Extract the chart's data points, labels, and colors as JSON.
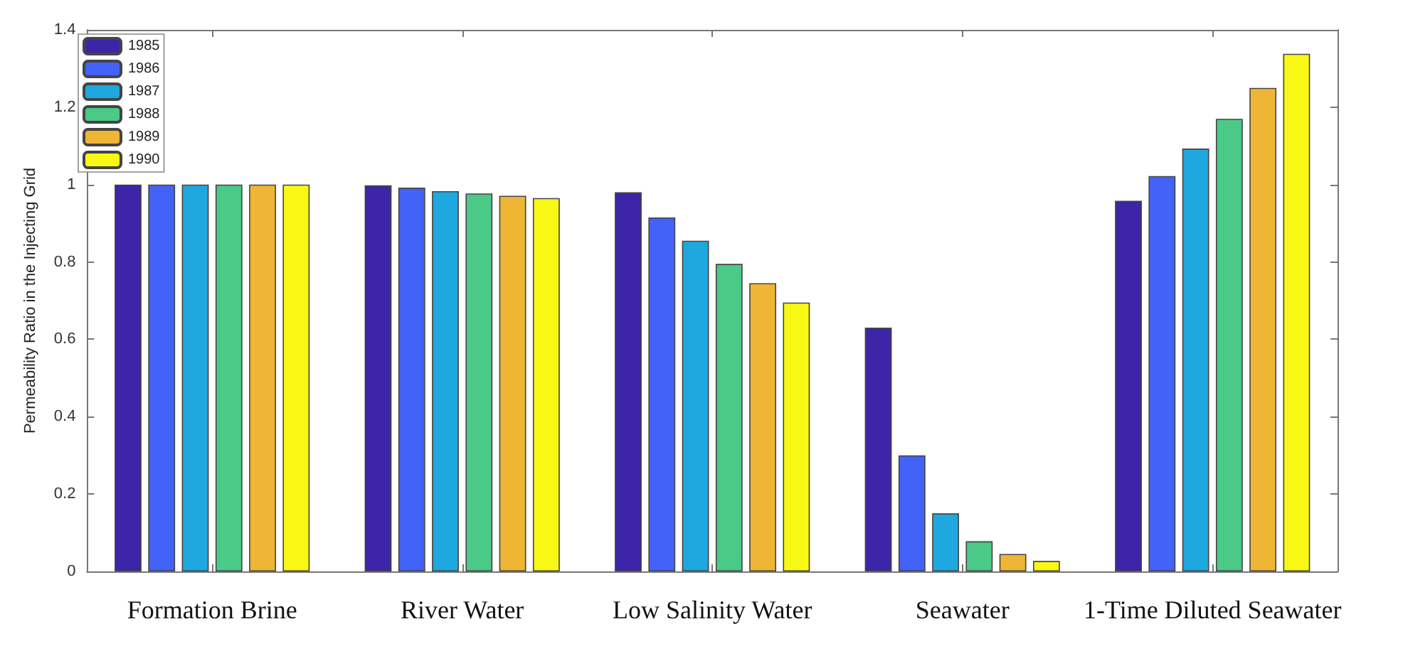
{
  "chart_data": {
    "type": "bar",
    "ylabel": "Permeability Ratio in the Injecting Grid",
    "categories": [
      "Formation Brine",
      "River Water",
      "Low Salinity Water",
      "Seawater",
      "1-Time Diluted Seawater"
    ],
    "series": [
      {
        "name": "1985",
        "color": "#3c25a8",
        "values": [
          1.0,
          0.998,
          0.98,
          0.63,
          0.958
        ]
      },
      {
        "name": "1986",
        "color": "#4262f8",
        "values": [
          1.0,
          0.992,
          0.915,
          0.3,
          1.022
        ]
      },
      {
        "name": "1987",
        "color": "#1ea8df",
        "values": [
          1.0,
          0.983,
          0.855,
          0.15,
          1.093
        ]
      },
      {
        "name": "1988",
        "color": "#4ac987",
        "values": [
          1.0,
          0.977,
          0.795,
          0.078,
          1.17
        ]
      },
      {
        "name": "1989",
        "color": "#eeb634",
        "values": [
          1.0,
          0.971,
          0.745,
          0.045,
          1.25
        ]
      },
      {
        "name": "1990",
        "color": "#f8f814",
        "values": [
          1.0,
          0.965,
          0.695,
          0.027,
          1.338
        ]
      }
    ],
    "ylim": [
      0,
      1.4
    ],
    "yticks": [
      0,
      0.2,
      0.4,
      0.6,
      0.8,
      1,
      1.2,
      1.4
    ],
    "grid": false,
    "legend": "top left"
  }
}
